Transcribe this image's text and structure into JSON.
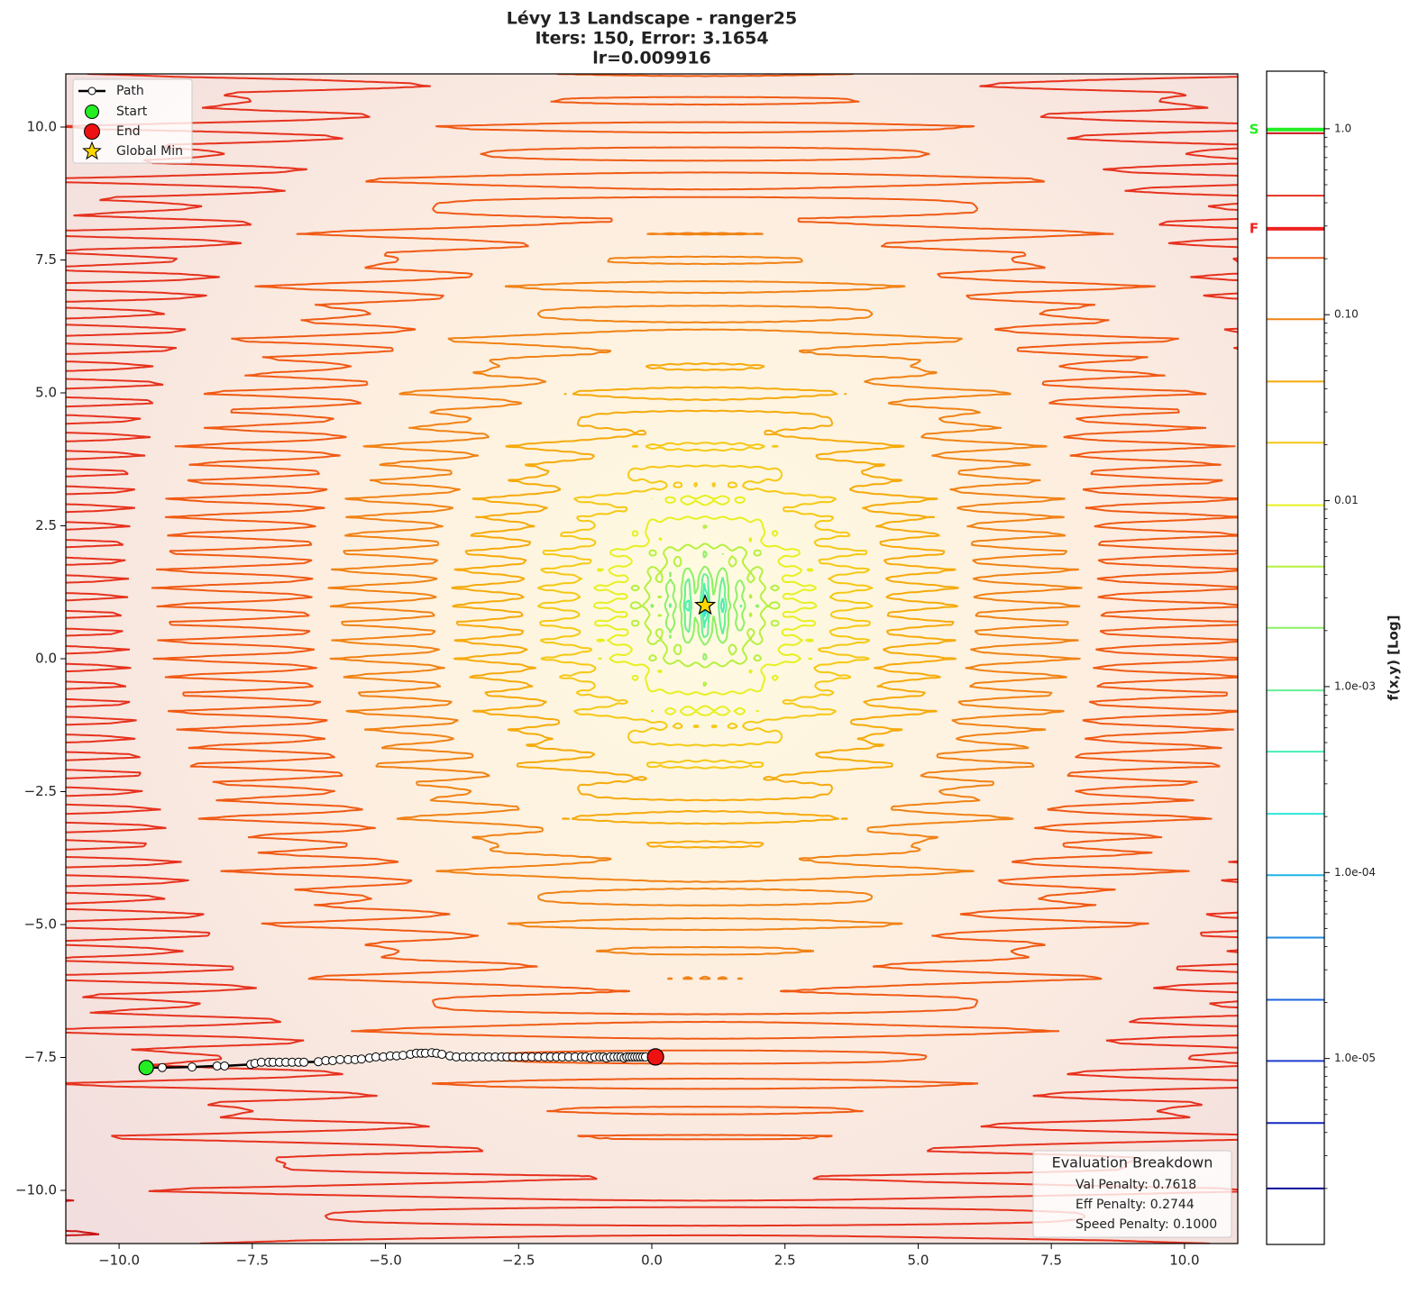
{
  "chart_data": {
    "type": "contour",
    "title_lines": [
      "Lévy 13 Landscape - ranger25",
      "Iters: 150, Error: 3.1654",
      "lr=0.009916"
    ],
    "function": "levy13",
    "xlim": [
      -11,
      11
    ],
    "ylim": [
      -11,
      11
    ],
    "xticks": [
      {
        "value": -10,
        "label": "−10.0"
      },
      {
        "value": -7.5,
        "label": "−7.5"
      },
      {
        "value": -5,
        "label": "−5.0"
      },
      {
        "value": -2.5,
        "label": "−2.5"
      },
      {
        "value": 0,
        "label": "0.0"
      },
      2.5,
      {
        "value": 5,
        "label": "5.0"
      },
      7.5,
      {
        "value": 10,
        "label": "10.0"
      }
    ],
    "yticks": [
      {
        "value": -10,
        "label": "−10.0"
      },
      {
        "value": -7.5,
        "label": "−7.5"
      },
      {
        "value": -5,
        "label": "−5.0"
      },
      {
        "value": -2.5,
        "label": "−2.5"
      },
      {
        "value": 0,
        "label": "0.0"
      },
      2.5,
      {
        "value": 5,
        "label": "5.0"
      },
      7.5,
      {
        "value": 10,
        "label": "10.0"
      }
    ],
    "contour_levels": [
      2e-06,
      4.5e-06,
      9.7e-06,
      2.07e-05,
      4.47e-05,
      9.67e-05,
      0.000207,
      0.000447,
      0.000955,
      0.00207,
      0.00442,
      0.00946,
      0.0205,
      0.0437,
      0.0946,
      0.202,
      0.437,
      0.946
    ],
    "contour_colors": [
      "#0a0a9a",
      "#1428c0",
      "#1e3cd0",
      "#1e64dc",
      "#1e8ce6",
      "#1eb4e6",
      "#2ee6d6",
      "#46f0b4",
      "#64f096",
      "#8cf064",
      "#b4f03c",
      "#e6f01e",
      "#f5c814",
      "#f5aa0a",
      "#f08214",
      "#f05a14",
      "#e6321e",
      "#c81414"
    ],
    "colorbar": {
      "label": "f(x,y) [Log]",
      "log": true,
      "lim": [
        1e-06,
        2.04
      ],
      "ticks": [
        {
          "value": 1,
          "label": "1.0"
        },
        {
          "value": 0.1,
          "label": "0.10"
        },
        0.01,
        {
          "value": 0.001,
          "label": "1.0e-03"
        },
        {
          "value": 0.0001,
          "label": "1.0e-04"
        },
        {
          "value": 1e-05,
          "label": "1.0e-05"
        }
      ],
      "markers": [
        {
          "label": "S",
          "value": 0.99,
          "color": "#22ee22"
        },
        {
          "label": "F",
          "value": 0.29,
          "color": "#ee2222"
        }
      ]
    },
    "path": {
      "name": "Path",
      "x": [
        -9.49,
        -9.19,
        -8.63,
        -8.16,
        -8.02,
        -7.53,
        -7.45,
        -7.33,
        -7.19,
        -7.11,
        -6.99,
        -6.87,
        -6.75,
        -6.63,
        -6.53,
        -6.26,
        -6.12,
        -5.99,
        -5.85,
        -5.7,
        -5.57,
        -5.45,
        -5.3,
        -5.18,
        -5.04,
        -4.91,
        -4.79,
        -4.67,
        -4.53,
        -4.42,
        -4.33,
        -4.25,
        -4.13,
        -4.04,
        -3.94,
        -3.79,
        -3.67,
        -3.54,
        -3.42,
        -3.3,
        -3.18,
        -3.06,
        -2.94,
        -2.82,
        -2.72,
        -2.61,
        -2.49,
        -2.37,
        -2.25,
        -2.13,
        -2.01,
        -1.9,
        -1.79,
        -1.68,
        -1.56,
        -1.44,
        -1.32,
        -1.24,
        -1.15,
        -1.07,
        -0.98,
        -0.91,
        -0.85,
        -0.78,
        -0.71,
        -0.64,
        -0.58,
        -0.52,
        -0.47,
        -0.42,
        -0.37,
        -0.32,
        -0.27,
        -0.22,
        -0.17,
        -0.12,
        0.07
      ],
      "y": [
        -7.69,
        -7.69,
        -7.68,
        -7.66,
        -7.66,
        -7.63,
        -7.61,
        -7.59,
        -7.59,
        -7.59,
        -7.59,
        -7.59,
        -7.59,
        -7.59,
        -7.59,
        -7.58,
        -7.56,
        -7.56,
        -7.54,
        -7.54,
        -7.54,
        -7.53,
        -7.51,
        -7.49,
        -7.49,
        -7.47,
        -7.47,
        -7.46,
        -7.44,
        -7.42,
        -7.42,
        -7.42,
        -7.41,
        -7.42,
        -7.44,
        -7.47,
        -7.49,
        -7.49,
        -7.49,
        -7.49,
        -7.49,
        -7.49,
        -7.49,
        -7.49,
        -7.49,
        -7.49,
        -7.49,
        -7.49,
        -7.49,
        -7.49,
        -7.49,
        -7.49,
        -7.49,
        -7.49,
        -7.49,
        -7.49,
        -7.49,
        -7.49,
        -7.51,
        -7.49,
        -7.49,
        -7.49,
        -7.51,
        -7.49,
        -7.49,
        -7.49,
        -7.49,
        -7.51,
        -7.49,
        -7.49,
        -7.49,
        -7.49,
        -7.49,
        -7.49,
        -7.49,
        -7.49,
        -7.49
      ]
    },
    "start": {
      "name": "Start",
      "color": "#22ee22"
    },
    "end": {
      "name": "End",
      "color": "#ee1111"
    },
    "global_min": {
      "name": "Global Min",
      "x": 1,
      "y": 1,
      "color": "#ffd700"
    },
    "evaluation": {
      "title": "Evaluation Breakdown",
      "items": [
        "Val Penalty: 0.7618",
        "Eff Penalty: 0.2744",
        "Speed Penalty: 0.1000"
      ]
    }
  }
}
